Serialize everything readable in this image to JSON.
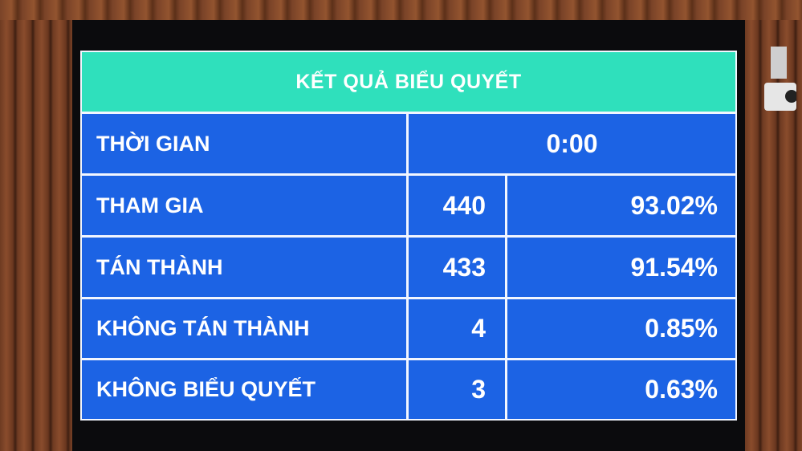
{
  "board": {
    "title": "KẾT QUẢ BIỂU QUYẾT",
    "time_label": "THỜI GIAN",
    "time_value": "0:00",
    "rows": [
      {
        "label": "THAM GIA",
        "count": "440",
        "percent": "93.02%"
      },
      {
        "label": "TÁN THÀNH",
        "count": "433",
        "percent": "91.54%"
      },
      {
        "label": "KHÔNG TÁN THÀNH",
        "count": "4",
        "percent": "0.85%"
      },
      {
        "label": "KHÔNG BIỂU QUYẾT",
        "count": "3",
        "percent": "0.63%"
      }
    ]
  },
  "colors": {
    "header": "#2fe0bc",
    "cell": "#1c63e4",
    "text": "#ffffff"
  }
}
